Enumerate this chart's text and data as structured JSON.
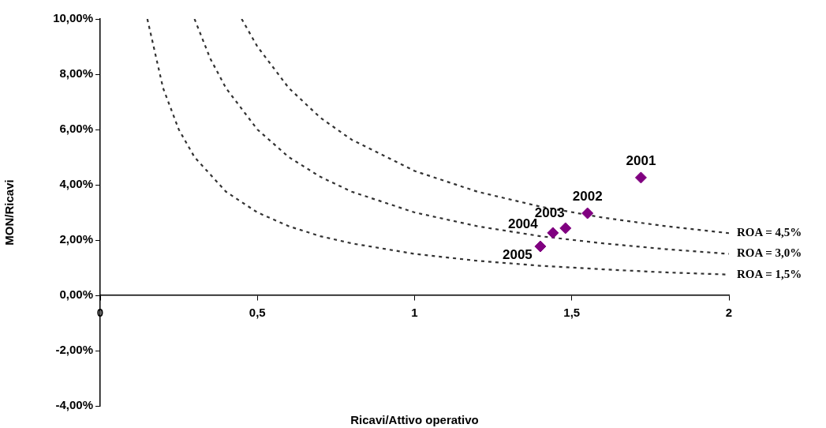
{
  "chart_data": {
    "type": "scatter",
    "xlabel": "Ricavi/Attivo operativo",
    "ylabel": "MON/Ricavi",
    "xlim": [
      0,
      2
    ],
    "xticks": [
      0,
      {
        "value": 0.5,
        "label": "0,5"
      },
      1,
      {
        "value": 1.5,
        "label": "1,5"
      },
      2
    ],
    "ylim": [
      -4,
      10
    ],
    "yticks": [
      {
        "value": -4,
        "label": "-4,00%"
      },
      {
        "value": -2,
        "label": "-2,00%"
      },
      {
        "value": 0,
        "label": "0,00%"
      },
      {
        "value": 2,
        "label": "2,00%"
      },
      {
        "value": 4,
        "label": "4,00%"
      },
      {
        "value": 6,
        "label": "6,00%"
      },
      {
        "value": 8,
        "label": "8,00%"
      },
      {
        "value": 10,
        "label": "10,00%"
      }
    ],
    "grid": false,
    "legend": false,
    "series": [
      {
        "type": "scatter",
        "color": "#800080",
        "marker": "diamond",
        "x": [
          1.72,
          1.55,
          1.48,
          1.44,
          1.4
        ],
        "values": [
          4.26,
          2.97,
          2.43,
          2.26,
          1.77
        ]
      },
      {
        "type": "line",
        "name": "ROA = 4,5%",
        "color": "#333333",
        "marker": "none",
        "line_style": "dashed",
        "x": [
          0.45,
          0.5,
          0.6,
          0.7,
          0.8,
          1,
          1.2,
          1.4,
          1.6,
          1.8,
          2
        ],
        "values": [
          10,
          9,
          7.5,
          6.43,
          5.63,
          4.5,
          3.75,
          3.21,
          2.81,
          2.5,
          2.25
        ]
      },
      {
        "type": "line",
        "name": "ROA = 3,0%",
        "color": "#333333",
        "marker": "none",
        "line_style": "dashed",
        "x": [
          0.3,
          0.35,
          0.4,
          0.5,
          0.6,
          0.7,
          0.8,
          1,
          1.2,
          1.4,
          1.6,
          1.8,
          2
        ],
        "values": [
          10,
          8.57,
          7.5,
          6,
          5,
          4.29,
          3.75,
          3,
          2.5,
          2.14,
          1.88,
          1.67,
          1.5
        ]
      },
      {
        "type": "line",
        "name": "ROA = 1,5%",
        "color": "#333333",
        "marker": "none",
        "line_style": "dashed",
        "x": [
          0.15,
          0.2,
          0.25,
          0.3,
          0.4,
          0.5,
          0.6,
          0.7,
          0.8,
          1,
          1.2,
          1.4,
          1.6,
          1.8,
          2
        ],
        "values": [
          10,
          7.5,
          6,
          5,
          3.75,
          3,
          2.5,
          2.14,
          1.88,
          1.5,
          1.25,
          1.07,
          0.94,
          0.83,
          0.75
        ]
      }
    ],
    "annotations": [
      {
        "text": "2001",
        "x": 1.72,
        "y": 4.26
      },
      {
        "text": "2002",
        "x": 1.55,
        "y": 2.97
      },
      {
        "text": "2003",
        "x": 1.48,
        "y": 2.43
      },
      {
        "text": "2004",
        "x": 1.44,
        "y": 2.26
      },
      {
        "text": "2005",
        "x": 1.4,
        "y": 1.77
      }
    ]
  }
}
